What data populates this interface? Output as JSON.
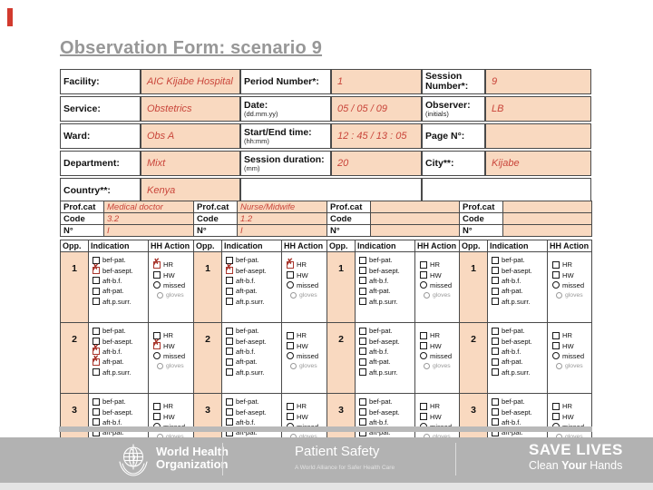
{
  "title": "Observation Form: scenario 9",
  "colors": {
    "peach": "#f9d9c0",
    "hand_ink": "#c9453a",
    "checked_mark": "#a8352c",
    "footer_gray": "#b2b2b2",
    "title_gray": "#979797",
    "accent_red": "#d23a2e"
  },
  "session_info": {
    "rows": [
      [
        {
          "kind": "label",
          "name": "facility-label",
          "label": "Facility:"
        },
        {
          "kind": "value",
          "name": "facility-value",
          "value": "AIC Kijabe Hospital"
        },
        {
          "kind": "label",
          "name": "period-number-label",
          "label": "Period Number*:"
        },
        {
          "kind": "value",
          "name": "period-number-value",
          "value": "1"
        },
        {
          "kind": "label",
          "name": "session-number-label",
          "label": "Session Number*:"
        },
        {
          "kind": "value",
          "name": "session-number-value",
          "value": "9"
        }
      ],
      [
        {
          "kind": "label",
          "name": "service-label",
          "label": "Service:"
        },
        {
          "kind": "value",
          "name": "service-value",
          "value": "Obstetrics"
        },
        {
          "kind": "label",
          "name": "date-label",
          "label": "Date:",
          "sub": "(dd.mm.yy)"
        },
        {
          "kind": "value",
          "name": "date-value",
          "value": "05 / 05 / 09"
        },
        {
          "kind": "label",
          "name": "observer-label",
          "label": "Observer:",
          "sub": "(initials)"
        },
        {
          "kind": "value",
          "name": "observer-value",
          "value": "LB"
        }
      ],
      [
        {
          "kind": "label",
          "name": "ward-label",
          "label": "Ward:"
        },
        {
          "kind": "value",
          "name": "ward-value",
          "value": "Obs A"
        },
        {
          "kind": "label",
          "name": "start-end-time-label",
          "label": "Start/End time:",
          "sub": "(hh:mm)"
        },
        {
          "kind": "value",
          "name": "start-end-time-value",
          "value": "12 : 45 / 13 : 05"
        },
        {
          "kind": "label",
          "name": "page-number-label",
          "label": "Page N°:"
        },
        {
          "kind": "value",
          "name": "page-number-value",
          "value": ""
        }
      ],
      [
        {
          "kind": "label",
          "name": "department-label",
          "label": "Department:"
        },
        {
          "kind": "value",
          "name": "department-value",
          "value": "Mixt"
        },
        {
          "kind": "label",
          "name": "session-duration-label",
          "label": "Session duration:",
          "sub": "(mm)"
        },
        {
          "kind": "value",
          "name": "session-duration-value",
          "value": "20"
        },
        {
          "kind": "label",
          "name": "city-label",
          "label": "City**:"
        },
        {
          "kind": "value",
          "name": "city-value",
          "value": "Kijabe"
        }
      ],
      [
        {
          "kind": "label",
          "name": "country-label",
          "label": "Country**:"
        },
        {
          "kind": "value",
          "name": "country-value",
          "value": "Kenya"
        },
        {
          "kind": "blank",
          "name": "empty-cell",
          "span": 2
        },
        {
          "kind": "blank",
          "name": "empty-cell",
          "span": 2
        }
      ]
    ]
  },
  "prof_header_labels": {
    "cat": "Prof.cat",
    "code": "Code",
    "n": "N°"
  },
  "grid_headers": {
    "opp": "Opp.",
    "indication": "Indication",
    "action": "HH Action"
  },
  "indication_labels": [
    "bef-pat.",
    "bef-asept.",
    "aft-b.f.",
    "aft-pat.",
    "aft.p.surr."
  ],
  "action_labels": {
    "hr": "HR",
    "hw": "HW",
    "missed": "missed",
    "gloves": "gloves"
  },
  "groups": [
    {
      "prof_cat": "Medical doctor",
      "code": "3.2",
      "n": "I",
      "rows": [
        {
          "opp": "1",
          "ind": [
            false,
            true,
            false,
            false,
            false
          ],
          "hr": true,
          "hw": false,
          "missed": false
        },
        {
          "opp": "2",
          "ind": [
            false,
            false,
            true,
            true,
            false
          ],
          "hr": false,
          "hw": true,
          "missed": false
        },
        {
          "opp": "3",
          "ind": [
            false,
            false,
            false,
            false,
            false
          ],
          "hr": false,
          "hw": false,
          "missed": false
        }
      ]
    },
    {
      "prof_cat": "Nurse/Midwife",
      "code": "1.2",
      "n": "I",
      "rows": [
        {
          "opp": "1",
          "ind": [
            false,
            true,
            false,
            false,
            false
          ],
          "hr": true,
          "hw": false,
          "missed": false
        },
        {
          "opp": "2",
          "ind": [
            false,
            false,
            false,
            false,
            false
          ],
          "hr": false,
          "hw": false,
          "missed": false
        },
        {
          "opp": "3",
          "ind": [
            false,
            false,
            false,
            false,
            false
          ],
          "hr": false,
          "hw": false,
          "missed": false
        }
      ]
    },
    {
      "prof_cat": "",
      "code": "",
      "n": "",
      "rows": [
        {
          "opp": "1",
          "ind": [
            false,
            false,
            false,
            false,
            false
          ],
          "hr": false,
          "hw": false,
          "missed": false
        },
        {
          "opp": "2",
          "ind": [
            false,
            false,
            false,
            false,
            false
          ],
          "hr": false,
          "hw": false,
          "missed": false
        },
        {
          "opp": "3",
          "ind": [
            false,
            false,
            false,
            false,
            false
          ],
          "hr": false,
          "hw": false,
          "missed": false
        }
      ]
    },
    {
      "prof_cat": "",
      "code": "",
      "n": "",
      "rows": [
        {
          "opp": "1",
          "ind": [
            false,
            false,
            false,
            false,
            false
          ],
          "hr": false,
          "hw": false,
          "missed": false
        },
        {
          "opp": "2",
          "ind": [
            false,
            false,
            false,
            false,
            false
          ],
          "hr": false,
          "hw": false,
          "missed": false
        },
        {
          "opp": "3",
          "ind": [
            false,
            false,
            false,
            false,
            false
          ],
          "hr": false,
          "hw": false,
          "missed": false
        }
      ]
    }
  ],
  "footer": {
    "who_line1": "World Health",
    "who_line2": "Organization",
    "patient_safety": "Patient Safety",
    "alliance": "A World Alliance for Safer Health Care",
    "save_lives": "SAVE LIVES",
    "clean_1": "Clean",
    "clean_2": "Your",
    "clean_3": "Hands"
  }
}
